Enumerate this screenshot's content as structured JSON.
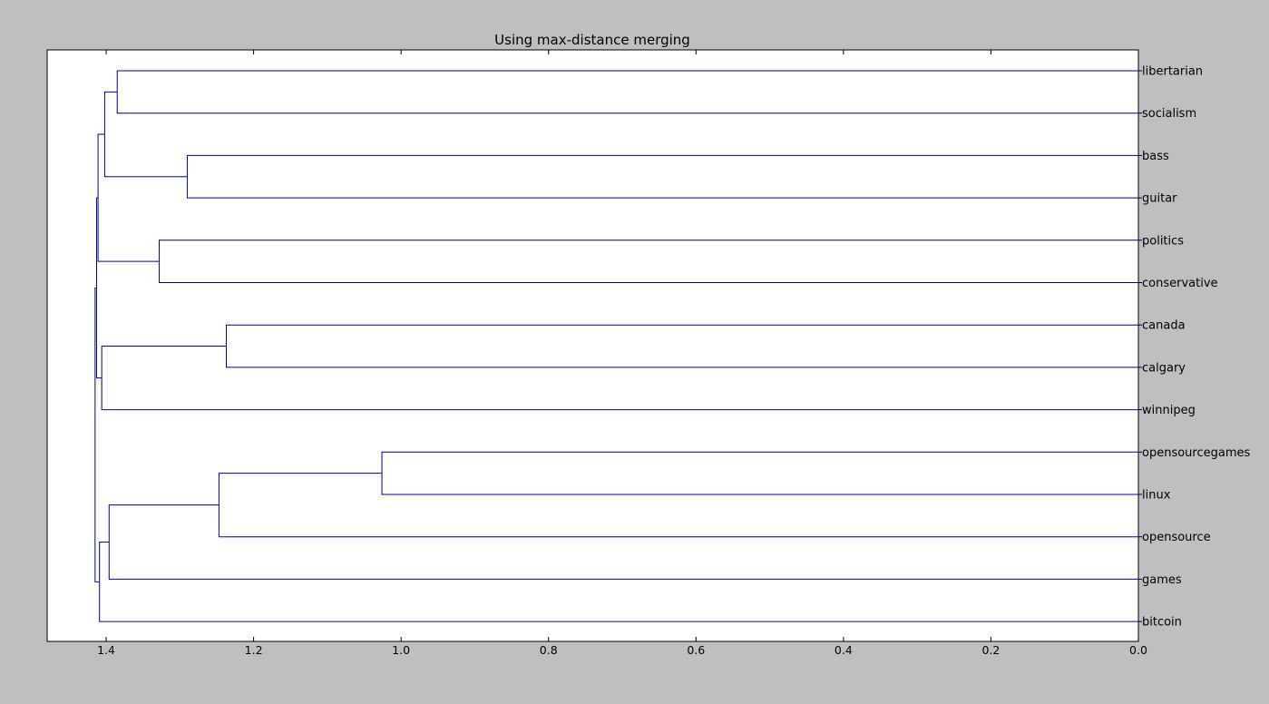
{
  "chart_data": {
    "type": "dendrogram",
    "title": "Using max-distance merging",
    "orientation": "left",
    "xlim": [
      1.48,
      0.0
    ],
    "xticks": [
      "1.4",
      "1.2",
      "1.0",
      "0.8",
      "0.6",
      "0.4",
      "0.2",
      "0.0"
    ],
    "xtick_values": [
      1.4,
      1.2,
      1.0,
      0.8,
      0.6,
      0.4,
      0.2,
      0.0
    ],
    "leaves": [
      "libertarian",
      "socialism",
      "bass",
      "guitar",
      "politics",
      "conservative",
      "canada",
      "calgary",
      "winnipeg",
      "opensourcegames",
      "linux",
      "opensource",
      "games",
      "bitcoin"
    ],
    "merges": [
      {
        "a": "libertarian",
        "b": "socialism",
        "distance": 1.385
      },
      {
        "a": "bass",
        "b": "guitar",
        "distance": 1.29
      },
      {
        "a": "politics",
        "b": "conservative",
        "distance": 1.328
      },
      {
        "a": "canada",
        "b": "calgary",
        "distance": 1.237
      },
      {
        "a": "opensourcegames",
        "b": "linux",
        "distance": 1.026
      },
      {
        "a": "cluster:opensourcegames+linux",
        "b": "opensource",
        "distance": 1.247
      },
      {
        "a": "cluster:libertarian+socialism",
        "b": "cluster:bass+guitar",
        "distance": 1.402
      },
      {
        "a": "cluster:canada+calgary",
        "b": "winnipeg",
        "distance": 1.406
      },
      {
        "a": "cluster:opensourcegames+linux+opensource",
        "b": "games",
        "distance": 1.396
      },
      {
        "a": "cluster:libertarian+socialism+bass+guitar",
        "b": "cluster:politics+conservative",
        "distance": 1.411
      },
      {
        "a": "cluster:opensourcegames+linux+opensource+games",
        "b": "bitcoin",
        "distance": 1.409
      },
      {
        "a": "cluster:libertarian+...+conservative",
        "b": "cluster:canada+calgary+winnipeg",
        "distance": 1.413
      },
      {
        "a": "cluster:libertarian+...+winnipeg",
        "b": "cluster:opensourcegames+...+bitcoin",
        "distance": 1.415
      }
    ],
    "line_color": "#00008b",
    "grid": false,
    "legend": "none"
  },
  "colors": {
    "figure_background": "#bfbfbf",
    "axes_background": "#ffffff",
    "line": "#00008b"
  }
}
